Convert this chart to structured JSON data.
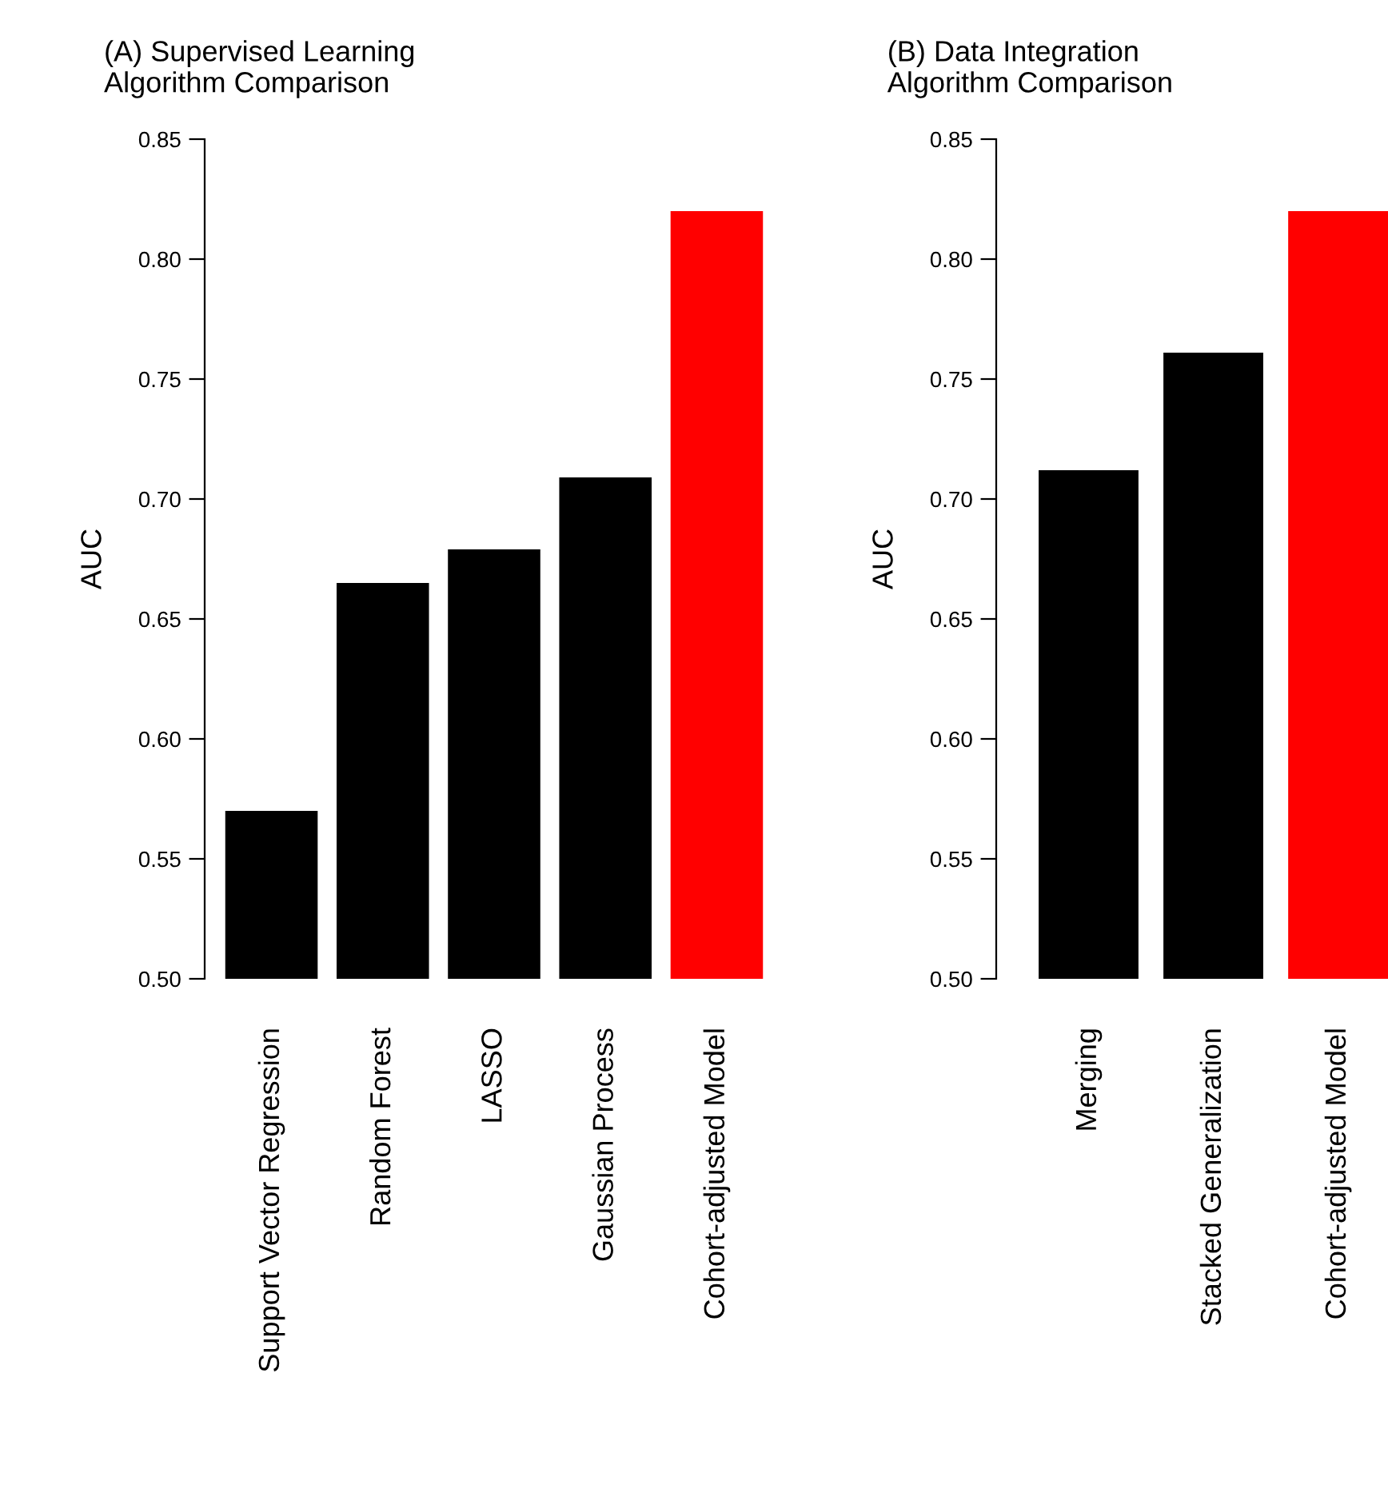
{
  "chart_data": [
    {
      "type": "bar",
      "title": "(A) Supervised Learning\nAlgorithm Comparison",
      "ylabel": "AUC",
      "categories": [
        "Support Vector Regression",
        "Random Forest",
        "LASSO",
        "Gaussian Process",
        "Cohort-adjusted Model"
      ],
      "values": [
        0.57,
        0.665,
        0.679,
        0.709,
        0.82
      ],
      "colors": [
        "#000000",
        "#000000",
        "#000000",
        "#000000",
        "#ff0000"
      ],
      "ylim": [
        0.5,
        0.85
      ],
      "yticks": [
        {
          "value": 0.5,
          "label": "0.50"
        },
        {
          "value": 0.55,
          "label": "0.55"
        },
        {
          "value": 0.6,
          "label": "0.60"
        },
        {
          "value": 0.65,
          "label": "0.65"
        },
        {
          "value": 0.7,
          "label": "0.70"
        },
        {
          "value": 0.75,
          "label": "0.75"
        },
        {
          "value": 0.8,
          "label": "0.80"
        },
        {
          "value": 0.85,
          "label": "0.85"
        }
      ],
      "grid": false
    },
    {
      "type": "bar",
      "title": "(B) Data Integration\nAlgorithm Comparison",
      "ylabel": "AUC",
      "categories": [
        "Merging",
        "Stacked Generalization",
        "Cohort-adjusted Model"
      ],
      "values": [
        0.712,
        0.761,
        0.82
      ],
      "colors": [
        "#000000",
        "#000000",
        "#ff0000"
      ],
      "ylim": [
        0.5,
        0.85
      ],
      "yticks": [
        {
          "value": 0.5,
          "label": "0.50"
        },
        {
          "value": 0.55,
          "label": "0.55"
        },
        {
          "value": 0.6,
          "label": "0.60"
        },
        {
          "value": 0.65,
          "label": "0.65"
        },
        {
          "value": 0.7,
          "label": "0.70"
        },
        {
          "value": 0.75,
          "label": "0.75"
        },
        {
          "value": 0.8,
          "label": "0.80"
        },
        {
          "value": 0.85,
          "label": "0.85"
        }
      ],
      "grid": false
    }
  ]
}
